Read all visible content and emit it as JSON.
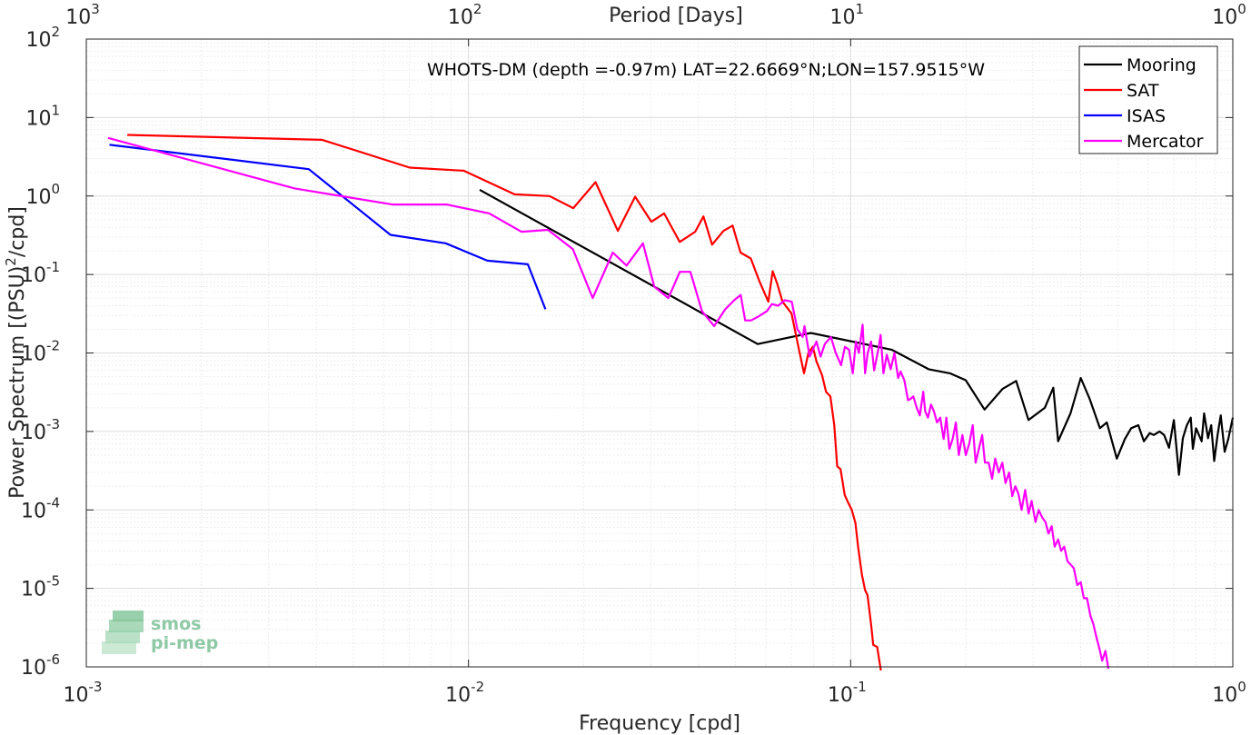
{
  "chart_data": {
    "type": "line",
    "title": "WHOTS-DM (depth =-0.97m) LAT=22.6669°N;LON=157.9515°W",
    "xlabel": "Frequency [cpd]",
    "ylabel_main": "Power Spectrum [(PSU)",
    "ylabel_sup": "2",
    "ylabel_tail": "/cpd]",
    "top_xlabel": "Period [Days]",
    "xscale": "log",
    "yscale": "log",
    "xlim": [
      0.001,
      1
    ],
    "ylim": [
      1e-06,
      100
    ],
    "grid": true,
    "legend_position": "top-right",
    "x_ticks": [
      {
        "value": 0.001,
        "base": "10",
        "exp": "-3"
      },
      {
        "value": 0.01,
        "base": "10",
        "exp": "-2"
      },
      {
        "value": 0.1,
        "base": "10",
        "exp": "-1"
      },
      {
        "value": 1,
        "base": "10",
        "exp": "0"
      }
    ],
    "top_ticks": [
      {
        "period": 1000,
        "base": "10",
        "exp": "3"
      },
      {
        "period": 100,
        "base": "10",
        "exp": "2"
      },
      {
        "period": 10,
        "base": "10",
        "exp": "1"
      },
      {
        "period": 1,
        "base": "10",
        "exp": "0"
      }
    ],
    "y_ticks": [
      {
        "value": 1e-06,
        "base": "10",
        "exp": "-6"
      },
      {
        "value": 1e-05,
        "base": "10",
        "exp": "-5"
      },
      {
        "value": 0.0001,
        "base": "10",
        "exp": "-4"
      },
      {
        "value": 0.001,
        "base": "10",
        "exp": "-3"
      },
      {
        "value": 0.01,
        "base": "10",
        "exp": "-2"
      },
      {
        "value": 0.1,
        "base": "10",
        "exp": "-1"
      },
      {
        "value": 1,
        "base": "10",
        "exp": "0"
      },
      {
        "value": 10,
        "base": "10",
        "exp": "1"
      },
      {
        "value": 100,
        "base": "10",
        "exp": "2"
      }
    ],
    "series": [
      {
        "name": "Mooring",
        "color": "#000000",
        "points": [
          [
            0.0107,
            1.2
          ],
          [
            0.0571,
            0.013
          ],
          [
            0.0787,
            0.018
          ],
          [
            0.128,
            0.011
          ],
          [
            0.16,
            0.0062
          ],
          [
            0.182,
            0.0055
          ],
          [
            0.2,
            0.0045
          ],
          [
            0.224,
            0.0019
          ],
          [
            0.25,
            0.0035
          ],
          [
            0.271,
            0.0044
          ],
          [
            0.292,
            0.0014
          ],
          [
            0.322,
            0.002
          ],
          [
            0.339,
            0.0036
          ],
          [
            0.349,
            0.00075
          ],
          [
            0.376,
            0.0017
          ],
          [
            0.4,
            0.0048
          ],
          [
            0.422,
            0.0026
          ],
          [
            0.449,
            0.0011
          ],
          [
            0.468,
            0.0013
          ],
          [
            0.497,
            0.00045
          ],
          [
            0.522,
            0.0008
          ],
          [
            0.542,
            0.0011
          ],
          [
            0.566,
            0.0012
          ],
          [
            0.585,
            0.00075
          ],
          [
            0.606,
            0.00095
          ],
          [
            0.621,
            0.0009
          ],
          [
            0.643,
            0.001
          ],
          [
            0.661,
            0.0009
          ],
          [
            0.681,
            0.00062
          ],
          [
            0.701,
            0.0014
          ],
          [
            0.723,
            0.00028
          ],
          [
            0.74,
            0.00082
          ],
          [
            0.758,
            0.0012
          ],
          [
            0.776,
            0.0015
          ],
          [
            0.786,
            0.0006
          ],
          [
            0.801,
            0.0011
          ],
          [
            0.829,
            0.00075
          ],
          [
            0.841,
            0.0017
          ],
          [
            0.861,
            0.00082
          ],
          [
            0.878,
            0.0012
          ],
          [
            0.894,
            0.00042
          ],
          [
            0.912,
            0.0009
          ],
          [
            0.93,
            0.0016
          ],
          [
            0.952,
            0.00055
          ],
          [
            0.973,
            0.0008
          ],
          [
            1.0,
            0.0015
          ]
        ]
      },
      {
        "name": "SAT",
        "color": "#ff0000",
        "points": [
          [
            0.00128,
            6.0
          ],
          [
            0.00414,
            5.2
          ],
          [
            0.00702,
            2.3
          ],
          [
            0.00972,
            2.1
          ],
          [
            0.0132,
            1.05
          ],
          [
            0.0163,
            1.0
          ],
          [
            0.0188,
            0.7
          ],
          [
            0.0215,
            1.5
          ],
          [
            0.0246,
            0.36
          ],
          [
            0.0273,
            0.98
          ],
          [
            0.0301,
            0.47
          ],
          [
            0.0325,
            0.6
          ],
          [
            0.0357,
            0.26
          ],
          [
            0.0392,
            0.35
          ],
          [
            0.0412,
            0.55
          ],
          [
            0.0434,
            0.24
          ],
          [
            0.0465,
            0.36
          ],
          [
            0.0491,
            0.42
          ],
          [
            0.0515,
            0.19
          ],
          [
            0.0548,
            0.16
          ],
          [
            0.0577,
            0.082
          ],
          [
            0.0609,
            0.045
          ],
          [
            0.0625,
            0.11
          ],
          [
            0.0643,
            0.075
          ],
          [
            0.0663,
            0.045
          ],
          [
            0.07,
            0.032
          ],
          [
            0.073,
            0.012
          ],
          [
            0.0755,
            0.0055
          ],
          [
            0.0775,
            0.01
          ],
          [
            0.0796,
            0.012
          ],
          [
            0.0814,
            0.0078
          ],
          [
            0.0842,
            0.0052
          ],
          [
            0.0862,
            0.0032
          ],
          [
            0.0885,
            0.0028
          ],
          [
            0.0906,
            0.0012
          ],
          [
            0.0922,
            0.00036
          ],
          [
            0.0941,
            0.00033
          ],
          [
            0.0965,
            0.000155
          ],
          [
            0.0984,
            0.000125
          ],
          [
            0.1007,
            0.0001
          ],
          [
            0.1029,
            6.8e-05
          ],
          [
            0.1046,
            3.4e-05
          ],
          [
            0.107,
            1.5e-05
          ],
          [
            0.1091,
            9.5e-06
          ],
          [
            0.1107,
            8.2e-06
          ],
          [
            0.1131,
            3.5e-06
          ],
          [
            0.1146,
            1.9e-06
          ],
          [
            0.1173,
            1.8e-06
          ],
          [
            0.12,
            9e-07
          ]
        ]
      },
      {
        "name": "ISAS",
        "color": "#0000ff",
        "points": [
          [
            0.00115,
            4.5
          ],
          [
            0.00382,
            2.2
          ],
          [
            0.00625,
            0.32
          ],
          [
            0.00872,
            0.25
          ],
          [
            0.0112,
            0.15
          ],
          [
            0.0143,
            0.135
          ],
          [
            0.0159,
            0.036
          ]
        ]
      },
      {
        "name": "Mercator",
        "color": "#ff00ff",
        "points": [
          [
            0.00114,
            5.5
          ],
          [
            0.00351,
            1.25
          ],
          [
            0.00632,
            0.78
          ],
          [
            0.00876,
            0.78
          ],
          [
            0.01134,
            0.6
          ],
          [
            0.01376,
            0.35
          ],
          [
            0.01615,
            0.37
          ],
          [
            0.01876,
            0.21
          ],
          [
            0.02114,
            0.05
          ],
          [
            0.02385,
            0.19
          ],
          [
            0.02592,
            0.13
          ],
          [
            0.02861,
            0.25
          ],
          [
            0.03063,
            0.07
          ],
          [
            0.03334,
            0.05
          ],
          [
            0.03572,
            0.108
          ],
          [
            0.03807,
            0.108
          ],
          [
            0.04084,
            0.034
          ],
          [
            0.04395,
            0.022
          ],
          [
            0.04697,
            0.036
          ],
          [
            0.04958,
            0.047
          ],
          [
            0.05157,
            0.055
          ],
          [
            0.05295,
            0.026
          ],
          [
            0.05484,
            0.026
          ],
          [
            0.05723,
            0.029
          ],
          [
            0.06031,
            0.034
          ],
          [
            0.06224,
            0.042
          ],
          [
            0.06459,
            0.04
          ],
          [
            0.06728,
            0.047
          ],
          [
            0.07012,
            0.045
          ],
          [
            0.07255,
            0.02
          ],
          [
            0.07489,
            0.016
          ],
          [
            0.0757,
            0.022
          ],
          [
            0.07809,
            0.009
          ],
          [
            0.0814,
            0.014
          ],
          [
            0.0834,
            0.009
          ],
          [
            0.0856,
            0.013
          ],
          [
            0.0888,
            0.016
          ],
          [
            0.0914,
            0.01
          ],
          [
            0.0944,
            0.007
          ],
          [
            0.0966,
            0.012
          ],
          [
            0.099,
            0.011
          ],
          [
            0.1013,
            0.0055
          ],
          [
            0.1032,
            0.014
          ],
          [
            0.1051,
            0.01
          ],
          [
            0.1075,
            0.023
          ],
          [
            0.1091,
            0.0055
          ],
          [
            0.1108,
            0.01
          ],
          [
            0.1131,
            0.014
          ],
          [
            0.1152,
            0.006
          ],
          [
            0.1181,
            0.011
          ],
          [
            0.1198,
            0.017
          ],
          [
            0.1218,
            0.0055
          ],
          [
            0.1243,
            0.0095
          ],
          [
            0.1273,
            0.0062
          ],
          [
            0.1302,
            0.01
          ],
          [
            0.1331,
            0.0048
          ],
          [
            0.1351,
            0.0058
          ],
          [
            0.1382,
            0.0045
          ],
          [
            0.1413,
            0.0025
          ],
          [
            0.1435,
            0.0026
          ],
          [
            0.1459,
            0.0028
          ],
          [
            0.1489,
            0.002
          ],
          [
            0.1517,
            0.0016
          ],
          [
            0.1548,
            0.0032
          ],
          [
            0.1567,
            0.0018
          ],
          [
            0.1593,
            0.0015
          ],
          [
            0.1623,
            0.0022
          ],
          [
            0.1652,
            0.0018
          ],
          [
            0.1683,
            0.0013
          ],
          [
            0.1715,
            0.0015
          ],
          [
            0.1751,
            0.0008
          ],
          [
            0.178,
            0.0015
          ],
          [
            0.1813,
            0.0006
          ],
          [
            0.1849,
            0.0008
          ],
          [
            0.1885,
            0.0013
          ],
          [
            0.1919,
            0.0005
          ],
          [
            0.196,
            0.0009
          ],
          [
            0.2001,
            0.0005
          ],
          [
            0.2044,
            0.0007
          ],
          [
            0.2086,
            0.0012
          ],
          [
            0.2123,
            0.0004
          ],
          [
            0.2166,
            0.0006
          ],
          [
            0.2209,
            0.0009
          ],
          [
            0.2245,
            0.0004
          ],
          [
            0.2296,
            0.0004
          ],
          [
            0.2345,
            0.00025
          ],
          [
            0.2389,
            0.00045
          ],
          [
            0.2441,
            0.0003
          ],
          [
            0.2494,
            0.0004
          ],
          [
            0.2542,
            0.00022
          ],
          [
            0.2598,
            0.0003
          ],
          [
            0.2647,
            0.00015
          ],
          [
            0.2697,
            0.0002
          ],
          [
            0.2748,
            0.00016
          ],
          [
            0.2801,
            0.0001
          ],
          [
            0.2861,
            0.00018
          ],
          [
            0.2921,
            9e-05
          ],
          [
            0.2975,
            0.00013
          ],
          [
            0.3045,
            7e-05
          ],
          [
            0.3104,
            0.0001
          ],
          [
            0.3172,
            8e-05
          ],
          [
            0.3235,
            7e-05
          ],
          [
            0.3294,
            5e-05
          ],
          [
            0.3357,
            6.2e-05
          ],
          [
            0.3418,
            3.4e-05
          ],
          [
            0.3491,
            4.2e-05
          ],
          [
            0.3553,
            3e-05
          ],
          [
            0.362,
            3.4e-05
          ],
          [
            0.3694,
            2.2e-05
          ],
          [
            0.3769,
            2e-05
          ],
          [
            0.3837,
            1.8e-05
          ],
          [
            0.3917,
            1.1e-05
          ],
          [
            0.4001,
            1.2e-05
          ],
          [
            0.4076,
            7.5e-06
          ],
          [
            0.4155,
            7.5e-06
          ],
          [
            0.4238,
            4.5e-06
          ],
          [
            0.4316,
            3.5e-06
          ],
          [
            0.4396,
            2.4e-06
          ],
          [
            0.4478,
            1.7e-06
          ],
          [
            0.4552,
            1.2e-06
          ],
          [
            0.4643,
            1.6e-06
          ],
          [
            0.4725,
            9.5e-07
          ]
        ]
      }
    ]
  },
  "colors": {
    "grid_major": "#dcdcdc",
    "grid_minor": "#ededed",
    "axis": "#262626",
    "logo": "#8fc9a6"
  },
  "logo": {
    "line1": "smos",
    "line2": "pi-mep"
  }
}
